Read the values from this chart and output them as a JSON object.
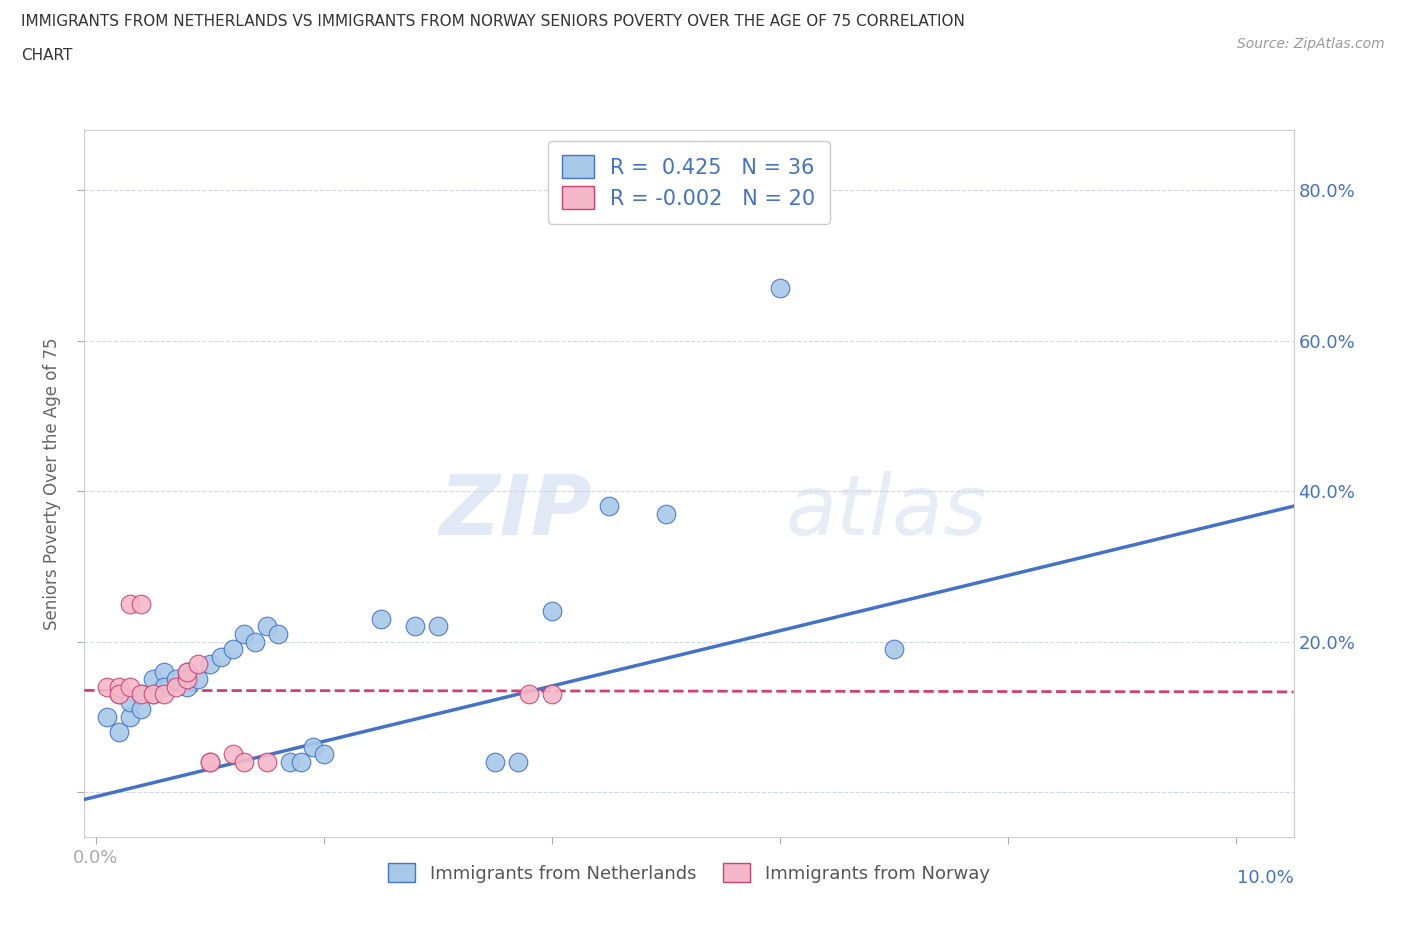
{
  "title_line1": "IMMIGRANTS FROM NETHERLANDS VS IMMIGRANTS FROM NORWAY SENIORS POVERTY OVER THE AGE OF 75 CORRELATION",
  "title_line2": "CHART",
  "source": "Source: ZipAtlas.com",
  "ylabel": "Seniors Poverty Over the Age of 75",
  "xlim": [
    -0.001,
    0.105
  ],
  "ylim": [
    -0.06,
    0.88
  ],
  "netherlands_R": 0.425,
  "netherlands_N": 36,
  "norway_R": -0.002,
  "norway_N": 20,
  "netherlands_color": "#a8c8e8",
  "norway_color": "#f4b8c8",
  "netherlands_line_color": "#4472c4",
  "norway_line_color": "#d04070",
  "watermark_zip": "ZIP",
  "watermark_atlas": "atlas",
  "netherlands_scatter": [
    [
      0.001,
      0.1
    ],
    [
      0.002,
      0.08
    ],
    [
      0.002,
      0.13
    ],
    [
      0.003,
      0.1
    ],
    [
      0.003,
      0.12
    ],
    [
      0.004,
      0.13
    ],
    [
      0.004,
      0.11
    ],
    [
      0.005,
      0.13
    ],
    [
      0.005,
      0.15
    ],
    [
      0.006,
      0.16
    ],
    [
      0.006,
      0.14
    ],
    [
      0.007,
      0.15
    ],
    [
      0.008,
      0.16
    ],
    [
      0.008,
      0.14
    ],
    [
      0.009,
      0.15
    ],
    [
      0.01,
      0.17
    ],
    [
      0.011,
      0.18
    ],
    [
      0.012,
      0.19
    ],
    [
      0.013,
      0.21
    ],
    [
      0.014,
      0.2
    ],
    [
      0.015,
      0.22
    ],
    [
      0.016,
      0.21
    ],
    [
      0.017,
      0.04
    ],
    [
      0.018,
      0.04
    ],
    [
      0.019,
      0.06
    ],
    [
      0.02,
      0.05
    ],
    [
      0.025,
      0.23
    ],
    [
      0.028,
      0.22
    ],
    [
      0.03,
      0.22
    ],
    [
      0.035,
      0.04
    ],
    [
      0.037,
      0.04
    ],
    [
      0.04,
      0.24
    ],
    [
      0.045,
      0.38
    ],
    [
      0.05,
      0.37
    ],
    [
      0.06,
      0.67
    ],
    [
      0.07,
      0.19
    ]
  ],
  "norway_scatter": [
    [
      0.001,
      0.14
    ],
    [
      0.002,
      0.14
    ],
    [
      0.002,
      0.13
    ],
    [
      0.003,
      0.14
    ],
    [
      0.003,
      0.25
    ],
    [
      0.004,
      0.25
    ],
    [
      0.004,
      0.13
    ],
    [
      0.005,
      0.13
    ],
    [
      0.006,
      0.13
    ],
    [
      0.007,
      0.14
    ],
    [
      0.008,
      0.15
    ],
    [
      0.008,
      0.16
    ],
    [
      0.009,
      0.17
    ],
    [
      0.01,
      0.04
    ],
    [
      0.01,
      0.04
    ],
    [
      0.012,
      0.05
    ],
    [
      0.013,
      0.04
    ],
    [
      0.015,
      0.04
    ],
    [
      0.038,
      0.13
    ],
    [
      0.04,
      0.13
    ]
  ],
  "netherlands_trendline_x": [
    -0.001,
    0.105
  ],
  "netherlands_trendline_y": [
    -0.01,
    0.38
  ],
  "norway_trendline_x": [
    -0.001,
    0.105
  ],
  "norway_trendline_y": [
    0.135,
    0.133
  ]
}
